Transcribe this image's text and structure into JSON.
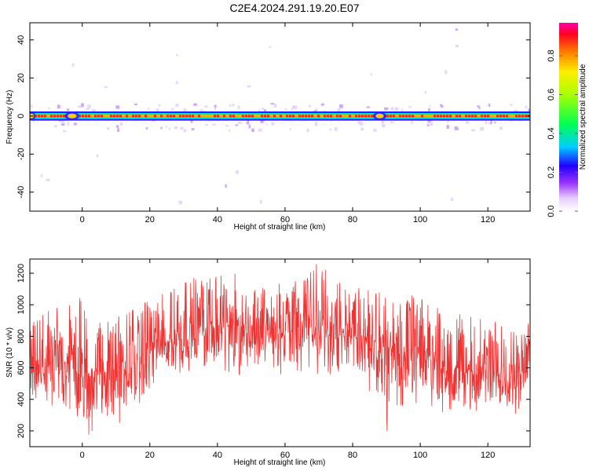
{
  "title": "C2E4.2024.291.19.20.E07",
  "chart_data": [
    {
      "type": "heatmap",
      "xlabel": "Height of straight line (km)",
      "ylabel": "Frequency (Hz)",
      "xlim": [
        -15.5,
        132.5
      ],
      "ylim": [
        -50,
        49
      ],
      "xticks": [
        0,
        20,
        40,
        60,
        80,
        100,
        120
      ],
      "yticks": [
        -40,
        -20,
        0,
        20,
        40
      ],
      "colorbar": {
        "label": "Normalized spectral amplitude",
        "range": [
          0.0,
          0.97
        ],
        "ticks": [
          0.0,
          0.2,
          0.4,
          0.6,
          0.8
        ],
        "tick_labels": [
          "0.0",
          "0.2",
          "0.4",
          "0.6",
          "0.8"
        ]
      },
      "ridge_frequency_hz": 0,
      "ridge_band_hz": [
        -2,
        2
      ],
      "grid": false
    },
    {
      "type": "line",
      "xlabel": "Height of straight line (km)",
      "ylabel": "SNR (10 * v/v)",
      "xlim": [
        -15.5,
        132.5
      ],
      "ylim": [
        100,
        1290
      ],
      "xticks": [
        0,
        20,
        40,
        60,
        80,
        100,
        120
      ],
      "yticks": [
        200,
        400,
        600,
        800,
        1000,
        1200
      ],
      "color": "#ee3333",
      "envelope": {
        "x": [
          -15,
          -10,
          -5,
          0,
          5,
          10,
          15,
          20,
          25,
          30,
          35,
          40,
          45,
          50,
          55,
          60,
          65,
          70,
          75,
          80,
          85,
          90,
          95,
          100,
          105,
          110,
          115,
          120,
          125,
          132
        ],
        "mean": [
          560,
          620,
          640,
          540,
          600,
          560,
          620,
          720,
          770,
          820,
          850,
          880,
          860,
          840,
          830,
          830,
          850,
          860,
          840,
          800,
          780,
          720,
          720,
          700,
          640,
          580,
          570,
          560,
          560,
          580
        ],
        "low": [
          330,
          360,
          300,
          130,
          250,
          230,
          330,
          420,
          500,
          560,
          600,
          600,
          560,
          550,
          560,
          560,
          580,
          560,
          560,
          520,
          450,
          170,
          370,
          360,
          320,
          320,
          310,
          300,
          300,
          320
        ],
        "high": [
          900,
          960,
          1000,
          1050,
          900,
          920,
          980,
          1050,
          1100,
          1200,
          1150,
          1180,
          1200,
          1150,
          1100,
          1150,
          1180,
          1270,
          1150,
          1120,
          1100,
          1060,
          1080,
          1050,
          980,
          950,
          930,
          900,
          910,
          880
        ]
      },
      "grid": false
    }
  ]
}
